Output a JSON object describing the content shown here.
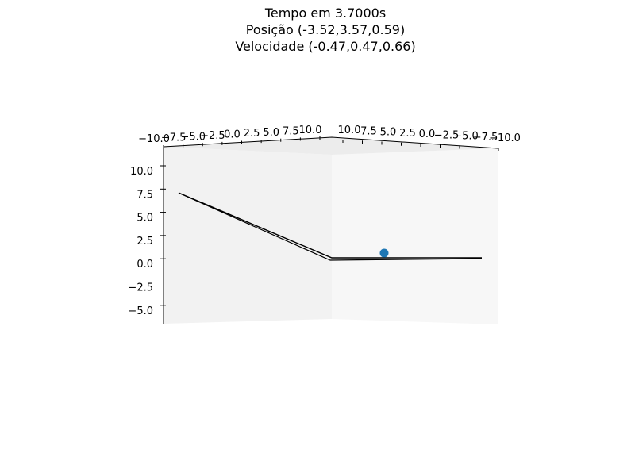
{
  "chart_data": {
    "type": "scatter",
    "projection": "3d",
    "title_lines": [
      "Tempo em 3.7000s",
      "Posição (-3.52,3.57,0.59)",
      "Velocidade  (-0.47,0.47,0.66)"
    ],
    "x_ticks": [
      "−10.0",
      "−7.5",
      "−5.0",
      "−2.5",
      "0.0",
      "2.5",
      "5.0",
      "7.5",
      "10.0"
    ],
    "y_ticks": [
      "10.0",
      "7.5",
      "5.0",
      "2.5",
      "0.0",
      "−2.5",
      "−5.0",
      "−7.5",
      "−10.0"
    ],
    "z_ticks": [
      "10.0",
      "7.5",
      "5.0",
      "2.5",
      "0.0",
      "−2.5",
      "−5.0"
    ],
    "xlim": [
      -10,
      10
    ],
    "ylim": [
      -10,
      10
    ],
    "zlim": [
      -6.5,
      12
    ],
    "grid": false,
    "point": {
      "x": -3.52,
      "y": 3.57,
      "z": 0.59,
      "color": "#1f77b4"
    },
    "line_color": "#000000",
    "pane_colors": [
      "#f2f2f2",
      "#f7f7f7",
      "#ececec"
    ]
  }
}
